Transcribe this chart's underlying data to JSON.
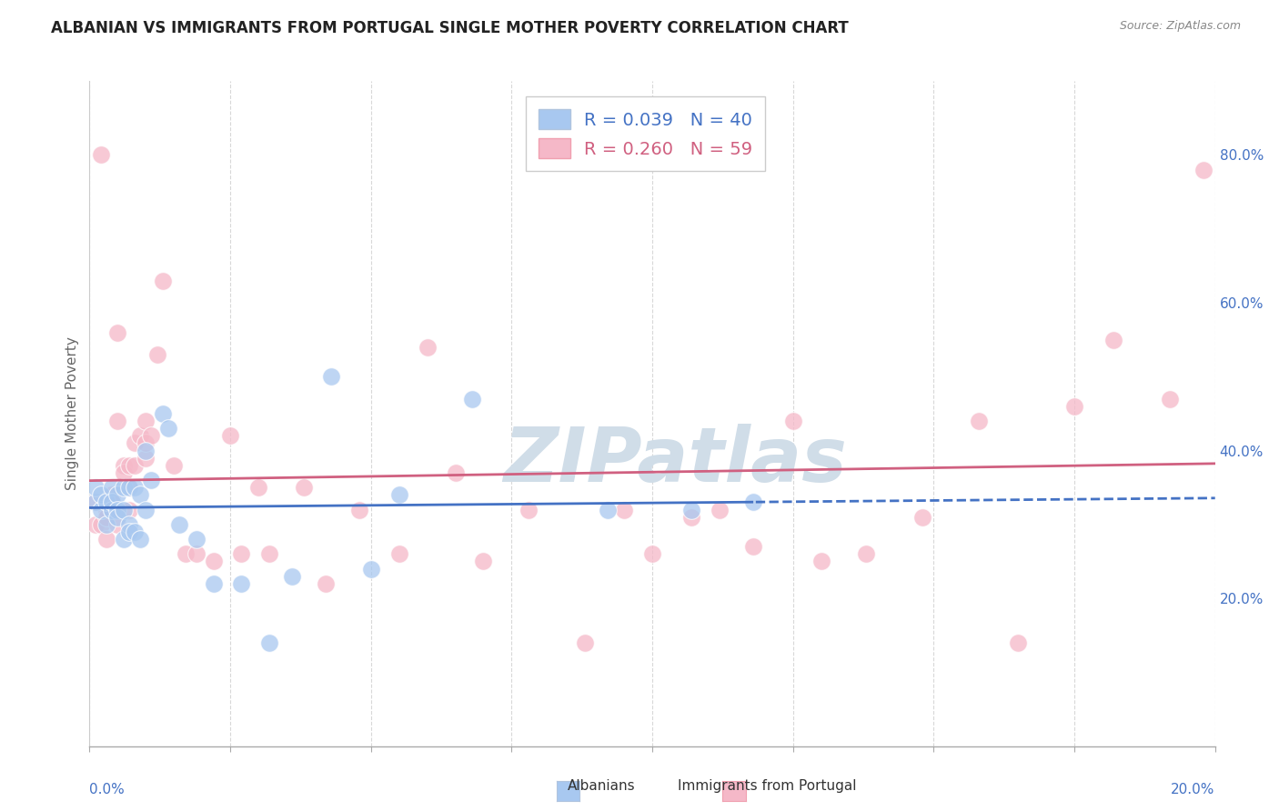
{
  "title": "ALBANIAN VS IMMIGRANTS FROM PORTUGAL SINGLE MOTHER POVERTY CORRELATION CHART",
  "source": "Source: ZipAtlas.com",
  "ylabel": "Single Mother Poverty",
  "legend_albanian": {
    "R": "0.039",
    "N": "40"
  },
  "legend_portugal": {
    "R": "0.260",
    "N": "59"
  },
  "albanian_color": "#a8c8f0",
  "portugal_color": "#f5b8c8",
  "trendline_albanian_color": "#4472c4",
  "trendline_portugal_color": "#d06080",
  "axis_label_color": "#4472c4",
  "background_color": "#ffffff",
  "albanian_x": [
    0.001,
    0.001,
    0.002,
    0.002,
    0.003,
    0.003,
    0.004,
    0.004,
    0.004,
    0.005,
    0.005,
    0.005,
    0.006,
    0.006,
    0.006,
    0.007,
    0.007,
    0.007,
    0.008,
    0.008,
    0.009,
    0.009,
    0.01,
    0.01,
    0.011,
    0.013,
    0.014,
    0.016,
    0.019,
    0.022,
    0.027,
    0.032,
    0.036,
    0.043,
    0.05,
    0.055,
    0.068,
    0.092,
    0.107,
    0.118
  ],
  "albanian_y": [
    0.33,
    0.35,
    0.32,
    0.34,
    0.33,
    0.3,
    0.35,
    0.32,
    0.33,
    0.34,
    0.32,
    0.31,
    0.35,
    0.32,
    0.28,
    0.35,
    0.3,
    0.29,
    0.35,
    0.29,
    0.34,
    0.28,
    0.4,
    0.32,
    0.36,
    0.45,
    0.43,
    0.3,
    0.28,
    0.22,
    0.22,
    0.14,
    0.23,
    0.5,
    0.24,
    0.34,
    0.47,
    0.32,
    0.32,
    0.33
  ],
  "portugal_x": [
    0.001,
    0.001,
    0.002,
    0.002,
    0.003,
    0.003,
    0.003,
    0.004,
    0.004,
    0.004,
    0.005,
    0.005,
    0.005,
    0.006,
    0.006,
    0.007,
    0.007,
    0.007,
    0.008,
    0.008,
    0.009,
    0.01,
    0.01,
    0.01,
    0.011,
    0.012,
    0.013,
    0.015,
    0.017,
    0.019,
    0.022,
    0.025,
    0.027,
    0.03,
    0.032,
    0.038,
    0.042,
    0.048,
    0.055,
    0.06,
    0.065,
    0.07,
    0.078,
    0.088,
    0.095,
    0.1,
    0.107,
    0.112,
    0.118,
    0.125,
    0.13,
    0.138,
    0.148,
    0.158,
    0.165,
    0.175,
    0.182,
    0.192,
    0.198
  ],
  "portugal_y": [
    0.33,
    0.3,
    0.8,
    0.3,
    0.32,
    0.28,
    0.31,
    0.34,
    0.33,
    0.32,
    0.56,
    0.44,
    0.3,
    0.38,
    0.37,
    0.32,
    0.35,
    0.38,
    0.38,
    0.41,
    0.42,
    0.39,
    0.41,
    0.44,
    0.42,
    0.53,
    0.63,
    0.38,
    0.26,
    0.26,
    0.25,
    0.42,
    0.26,
    0.35,
    0.26,
    0.35,
    0.22,
    0.32,
    0.26,
    0.54,
    0.37,
    0.25,
    0.32,
    0.14,
    0.32,
    0.26,
    0.31,
    0.32,
    0.27,
    0.44,
    0.25,
    0.26,
    0.31,
    0.44,
    0.14,
    0.46,
    0.55,
    0.47,
    0.78
  ],
  "xmin": 0.0,
  "xmax": 0.2,
  "ymin": 0.0,
  "ymax": 0.9,
  "grid_color": "#d8d8d8",
  "grid_linestyle": "--",
  "watermark": "ZIPatlas",
  "watermark_color": "#d0dde8",
  "watermark_fontsize": 60,
  "right_yticks": [
    0.2,
    0.4,
    0.6,
    0.8
  ],
  "right_yticklabels": [
    "20.0%",
    "40.0%",
    "60.0%",
    "80.0%"
  ]
}
